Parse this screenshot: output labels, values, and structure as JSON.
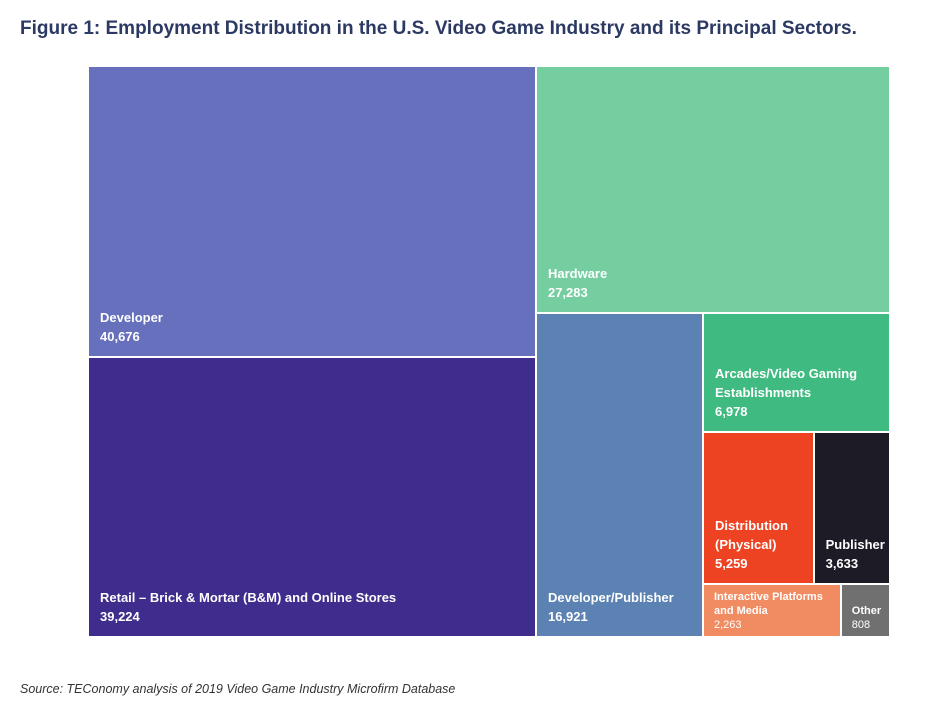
{
  "chart_data": {
    "type": "treemap",
    "title": "Figure 1: Employment Distribution in the U.S. Video Game Industry and its Principal Sectors.",
    "categories": [
      "Developer",
      "Retail – Brick & Mortar (B&M) and Online Stores",
      "Hardware",
      "Developer/Publisher",
      "Arcades/Video Gaming Establishments",
      "Distribution (Physical)",
      "Publisher",
      "Interactive Platforms and Media",
      "Other"
    ],
    "values": [
      40676,
      39224,
      27283,
      16921,
      6978,
      5259,
      3633,
      2263,
      808
    ],
    "value_labels": [
      "40,676",
      "39,224",
      "27,283",
      "16,921",
      "6,978",
      "5,259",
      "3,633",
      "2,263",
      "808"
    ],
    "colors": [
      "#6670bd",
      "#3f2c8c",
      "#74cea0",
      "#5b82b3",
      "#3fba80",
      "#ee4322",
      "#1c1b26",
      "#f08b62",
      "#707070"
    ],
    "source": "Source: TEConomy analysis of 2019 Video Game Industry Microfirm Database"
  }
}
